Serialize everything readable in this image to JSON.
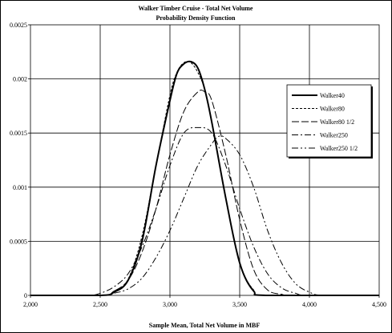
{
  "chart_data": {
    "type": "line",
    "title": "Walker Timber Cruise - Total Net Volume",
    "subtitle": "Probability Density Function",
    "xlabel": "Sample Mean, Total Net Volume in MBF",
    "ylabel": "",
    "xlim": [
      2000,
      4500
    ],
    "ylim": [
      0,
      0.0025
    ],
    "x_ticks": [
      2000,
      2500,
      3000,
      3500,
      4000,
      4500
    ],
    "x_tick_labels": [
      "2,000",
      "2,500",
      "3,000",
      "3,500",
      "4,000",
      "4,500"
    ],
    "y_ticks": [
      0,
      0.0005,
      0.001,
      0.0015,
      0.002,
      0.0025
    ],
    "y_tick_labels": [
      "0",
      "0.0005",
      "0.001",
      "0.0015",
      "0.002",
      "0.0025"
    ],
    "grid": true,
    "legend_position": "right",
    "series": [
      {
        "name": "Walker40",
        "x": [
          2500,
          2600,
          2700,
          2800,
          2900,
          3000,
          3050,
          3100,
          3150,
          3200,
          3250,
          3300,
          3400,
          3500,
          3600,
          3700
        ],
        "y": [
          0,
          3e-05,
          0.00014,
          0.0005,
          0.0012,
          0.0018,
          0.00205,
          0.00214,
          0.00216,
          0.0021,
          0.0019,
          0.0016,
          0.0009,
          0.0003,
          4e-05,
          0
        ]
      },
      {
        "name": "Walker80",
        "x": [
          2500,
          2600,
          2700,
          2800,
          2900,
          3000,
          3050,
          3100,
          3150,
          3200,
          3250,
          3300,
          3400,
          3500,
          3600,
          3700
        ],
        "y": [
          0,
          4e-05,
          0.00015,
          0.00055,
          0.0012,
          0.00185,
          0.00206,
          0.00215,
          0.00215,
          0.00206,
          0.0019,
          0.0016,
          0.0009,
          0.0003,
          5e-05,
          0
        ]
      },
      {
        "name": "Walker80 1/2",
        "x": [
          2500,
          2600,
          2700,
          2800,
          2900,
          3000,
          3100,
          3200,
          3250,
          3300,
          3400,
          3500,
          3600,
          3700,
          3800,
          3900
        ],
        "y": [
          0,
          4e-05,
          0.00014,
          0.0004,
          0.0008,
          0.0013,
          0.0017,
          0.00188,
          0.00188,
          0.0018,
          0.0013,
          0.0007,
          0.00024,
          5e-05,
          1e-05,
          0
        ]
      },
      {
        "name": "Walker250",
        "x": [
          2400,
          2500,
          2600,
          2700,
          2800,
          2900,
          3000,
          3100,
          3200,
          3300,
          3400,
          3500,
          3600,
          3700,
          3800,
          3900,
          4000
        ],
        "y": [
          0,
          2e-05,
          8e-05,
          0.0002,
          0.00045,
          0.0008,
          0.0012,
          0.0015,
          0.00155,
          0.0015,
          0.0012,
          0.0008,
          0.00045,
          0.0002,
          7e-05,
          2e-05,
          0
        ]
      },
      {
        "name": "Walker250 1/2",
        "x": [
          2500,
          2600,
          2700,
          2800,
          2900,
          3000,
          3100,
          3200,
          3300,
          3350,
          3400,
          3500,
          3600,
          3700,
          3800,
          3900,
          4000,
          4100
        ],
        "y": [
          0,
          2e-05,
          6e-05,
          0.00016,
          0.00035,
          0.0006,
          0.0009,
          0.0012,
          0.0014,
          0.00147,
          0.00145,
          0.0013,
          0.001,
          0.0006,
          0.0003,
          0.00011,
          3e-05,
          0
        ]
      }
    ]
  },
  "series_colors": [
    "#000000",
    "#000000",
    "#000000",
    "#000000",
    "#000000"
  ]
}
